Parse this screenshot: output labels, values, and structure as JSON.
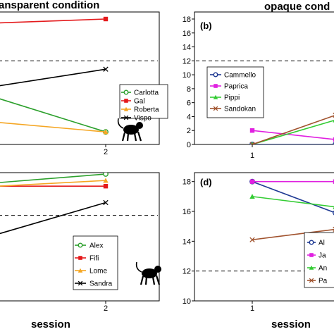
{
  "figure": {
    "title_left": "ansparent condition",
    "title_right": "opaque cond",
    "xlabel_left": "session",
    "xlabel_right": "session"
  },
  "chart_data": [
    {
      "panel": "a",
      "type": "line",
      "label": "",
      "x": [
        1,
        2
      ],
      "xtick_labels": [
        "",
        "2"
      ],
      "ylim": [
        0,
        18
      ],
      "threshold": 12,
      "series": [
        {
          "name": "Carlotta",
          "color": "#2ca02c",
          "marker": "circle-open",
          "values": [
            7.8,
            1.8
          ]
        },
        {
          "name": "Gal",
          "color": "#e41a1c",
          "marker": "square",
          "values": [
            17.3,
            18.0
          ]
        },
        {
          "name": "Roberta",
          "color": "#f5a623",
          "marker": "triangle",
          "values": [
            3.5,
            1.8
          ]
        },
        {
          "name": "Vispo",
          "color": "#000000",
          "marker": "x",
          "values": [
            7.8,
            10.8
          ]
        }
      ],
      "icon": "monkey-icon"
    },
    {
      "panel": "b",
      "type": "line",
      "label": "(b)",
      "x": [
        1,
        2
      ],
      "xtick_labels": [
        "1",
        ""
      ],
      "ytick_labels": [
        "0",
        "2",
        "4",
        "6",
        "8",
        "10",
        "12",
        "14",
        "16",
        "18"
      ],
      "ylim": [
        0,
        18
      ],
      "threshold": 12,
      "series": [
        {
          "name": "Cammello",
          "color": "#1f3a93",
          "marker": "circle-open",
          "values": [
            0,
            0
          ]
        },
        {
          "name": "Paprica",
          "color": "#e020e0",
          "marker": "square",
          "values": [
            2.0,
            0.7
          ]
        },
        {
          "name": "Pippi",
          "color": "#33cc33",
          "marker": "triangle",
          "values": [
            0,
            3.5
          ]
        },
        {
          "name": "Sandokan",
          "color": "#a0522d",
          "marker": "x",
          "values": [
            0,
            4.2
          ]
        }
      ]
    },
    {
      "panel": "c",
      "type": "line",
      "label": "",
      "x": [
        1,
        2
      ],
      "xtick_labels": [
        "",
        "2"
      ],
      "ylim": [
        0,
        18
      ],
      "threshold": 12,
      "series": [
        {
          "name": "Alex",
          "color": "#2ca02c",
          "marker": "circle-open",
          "values": [
            16.3,
            17.8
          ]
        },
        {
          "name": "Fifi",
          "color": "#e41a1c",
          "marker": "square",
          "values": [
            16.1,
            16.1
          ]
        },
        {
          "name": "Lome",
          "color": "#f5a623",
          "marker": "triangle",
          "values": [
            15.9,
            16.9
          ]
        },
        {
          "name": "Sandra",
          "color": "#000000",
          "marker": "x",
          "values": [
            8.3,
            13.8
          ]
        }
      ],
      "icon": "monkey-icon"
    },
    {
      "panel": "d",
      "type": "line",
      "label": "(d)",
      "x": [
        1,
        2
      ],
      "xtick_labels": [
        "1",
        ""
      ],
      "ytick_labels": [
        "10",
        "12",
        "14",
        "16",
        "18"
      ],
      "ylim": [
        10,
        18.6
      ],
      "threshold": 12,
      "legend_labels": [
        "Al",
        "Ja",
        "An",
        "Pa"
      ],
      "series": [
        {
          "name": "Al",
          "color": "#1f3a93",
          "marker": "circle-open",
          "values": [
            18.0,
            15.9
          ]
        },
        {
          "name": "Ja",
          "color": "#e020e0",
          "marker": "square",
          "values": [
            18.0,
            18.0
          ]
        },
        {
          "name": "An",
          "color": "#33cc33",
          "marker": "triangle",
          "values": [
            17.0,
            16.3
          ]
        },
        {
          "name": "Pa",
          "color": "#a0522d",
          "marker": "x",
          "values": [
            14.1,
            14.8
          ]
        }
      ]
    }
  ]
}
